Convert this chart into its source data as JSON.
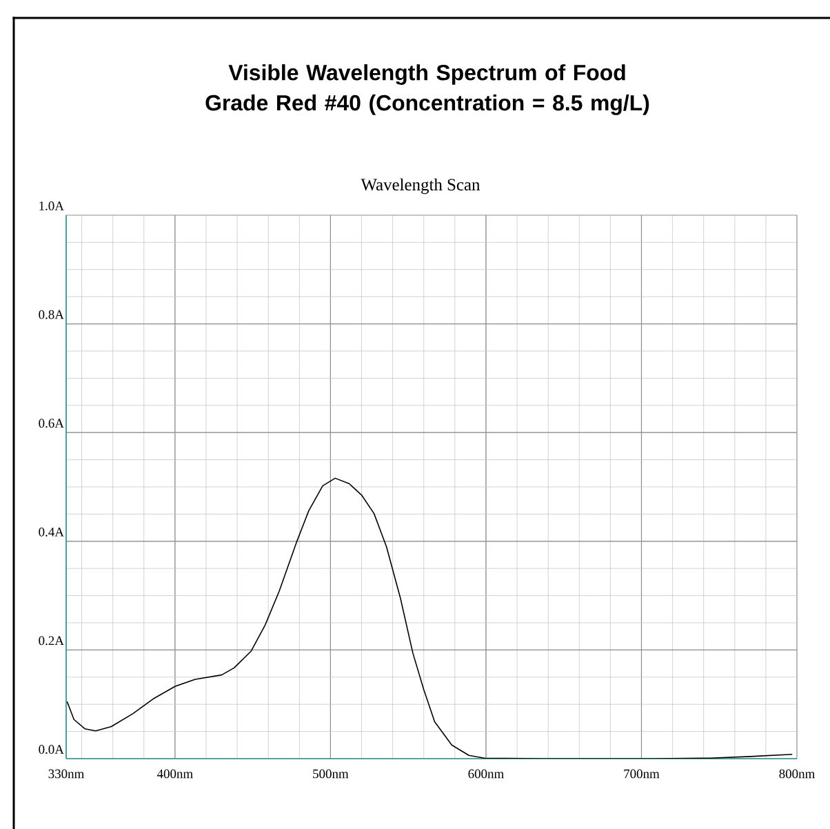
{
  "chart_data": {
    "type": "line",
    "title": "Visible Wavelength Spectrum of Food Grade Red #40 (Concentration = 8.5 mg/L)",
    "subtitle": "Wavelength Scan",
    "xlim": [
      330,
      800
    ],
    "ylim": [
      0,
      1.0
    ],
    "xticks": [
      {
        "value": 330,
        "label": "330nm"
      },
      {
        "value": 400,
        "label": "400nm"
      },
      {
        "value": 500,
        "label": "500nm"
      },
      {
        "value": 600,
        "label": "600nm"
      },
      {
        "value": 700,
        "label": "700nm"
      },
      {
        "value": 800,
        "label": "800nm"
      }
    ],
    "yticks": [
      {
        "value": 0,
        "label": "0.0A"
      },
      {
        "value": 0.2,
        "label": "0.2A"
      },
      {
        "value": 0.4,
        "label": "0.4A"
      },
      {
        "value": 0.6,
        "label": "0.6A"
      },
      {
        "value": 0.8,
        "label": "0.8A"
      },
      {
        "value": 1.0,
        "label": "1.0A"
      }
    ],
    "grid": true,
    "legend": false,
    "marker": "none",
    "line_style": "solid",
    "series": [
      {
        "color": "#000000",
        "x": [
          330.6,
          335,
          342,
          349,
          359,
          373,
          386,
          400,
          413,
          430,
          438,
          449,
          458,
          467,
          478,
          486,
          495,
          503,
          512,
          520,
          528,
          536,
          545,
          553,
          560,
          567,
          578,
          589,
          599,
          637,
          706,
          744,
          770,
          797
        ],
        "values": [
          0.105,
          0.072,
          0.055,
          0.051,
          0.059,
          0.083,
          0.11,
          0.133,
          0.146,
          0.154,
          0.167,
          0.198,
          0.246,
          0.308,
          0.397,
          0.456,
          0.502,
          0.516,
          0.506,
          0.485,
          0.451,
          0.39,
          0.295,
          0.194,
          0.127,
          0.068,
          0.025,
          0.006,
          0.001,
          0.0,
          0.0,
          0.001,
          0.004,
          0.008
        ]
      }
    ]
  }
}
